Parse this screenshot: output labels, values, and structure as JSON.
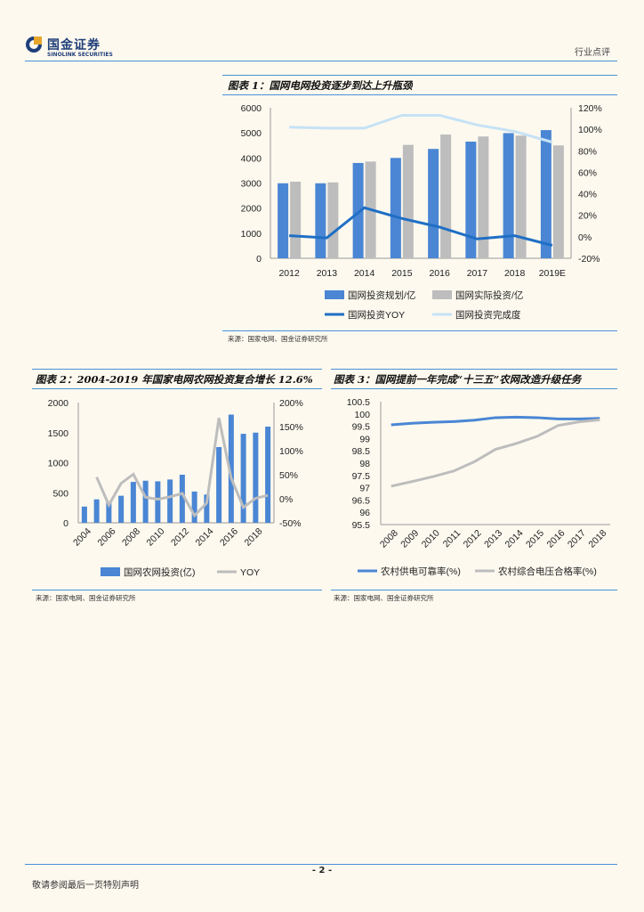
{
  "header": {
    "brand_cn": "国金证券",
    "brand_en": "SINOLINK SECURITIES",
    "category": "行业点评"
  },
  "fig1": {
    "title": "图表 1：国网电网投资逐步到达上升瓶颈",
    "source": "来源：国家电网、国金证券研究所",
    "chart_data": {
      "type": "bar",
      "categories": [
        "2012",
        "2013",
        "2014",
        "2015",
        "2016",
        "2017",
        "2018",
        "2019E"
      ],
      "series": [
        {
          "name": "国网投资规划/亿",
          "type": "bar",
          "color": "#4a86d4",
          "values": [
            2990,
            2990,
            3800,
            4000,
            4360,
            4650,
            4990,
            5110
          ]
        },
        {
          "name": "国网实际投资/亿",
          "type": "bar",
          "color": "#bdbdbd",
          "values": [
            3054,
            3025,
            3855,
            4521,
            4933,
            4855,
            4889,
            4500
          ]
        },
        {
          "name": "国网投资YOY",
          "type": "line",
          "axis": "right",
          "color": "#1f6fc5",
          "values": [
            1,
            -1,
            27,
            17,
            9,
            -2,
            1,
            -8
          ]
        },
        {
          "name": "国网投资完成度",
          "type": "line",
          "axis": "right",
          "color": "#c6e2f5",
          "values": [
            102,
            101,
            101,
            113,
            113,
            104,
            98,
            88
          ]
        }
      ],
      "y_left": {
        "min": 0,
        "max": 6000,
        "ticks": [
          "0",
          "1000",
          "2000",
          "3000",
          "4000",
          "5000",
          "6000"
        ]
      },
      "y_right": {
        "min": -20,
        "max": 120,
        "ticks": [
          "-20%",
          "0%",
          "20%",
          "40%",
          "60%",
          "80%",
          "100%",
          "120%"
        ]
      }
    }
  },
  "fig2": {
    "title": "图表 2：2004-2019 年国家电网农网投资复合增长 12.6%",
    "source": "来源：国家电网、国金证券研究所",
    "chart_data": {
      "type": "bar",
      "categories": [
        "2004",
        "2005",
        "2006",
        "2007",
        "2008",
        "2009",
        "2010",
        "2011",
        "2012",
        "2013",
        "2014",
        "2015",
        "2016",
        "2017",
        "2018",
        "2019"
      ],
      "x_tick_labels": [
        "2004",
        "2006",
        "2008",
        "2010",
        "2012",
        "2014",
        "2016",
        "2018"
      ],
      "series": [
        {
          "name": "国网农网投资(亿)",
          "type": "bar",
          "color": "#4a86d4",
          "values": [
            270,
            390,
            340,
            450,
            680,
            700,
            690,
            720,
            800,
            520,
            470,
            1260,
            1800,
            1480,
            1500,
            1600
          ]
        },
        {
          "name": "YOY",
          "type": "line",
          "axis": "right",
          "color": "#bdbdbd",
          "values": [
            null,
            45,
            -13,
            32,
            51,
            3,
            -1,
            4,
            11,
            -35,
            -9,
            168,
            43,
            -18,
            1,
            7
          ]
        }
      ],
      "y_left": {
        "min": 0,
        "max": 2000,
        "ticks": [
          "0",
          "500",
          "1000",
          "1500",
          "2000"
        ]
      },
      "y_right": {
        "min": -50,
        "max": 200,
        "ticks": [
          "-50%",
          "0%",
          "50%",
          "100%",
          "150%",
          "200%"
        ]
      }
    }
  },
  "fig3": {
    "title": "图表 3：国网提前一年完成“十三五”农网改造升级任务",
    "source": "来源：国家电网、国金证券研究所",
    "chart_data": {
      "type": "line",
      "categories": [
        "2008",
        "2009",
        "2010",
        "2011",
        "2012",
        "2013",
        "2014",
        "2015",
        "2016",
        "2017",
        "2018"
      ],
      "series": [
        {
          "name": "农村供电可靠率(%)",
          "color": "#4a86d4",
          "values": [
            99.56,
            99.62,
            99.66,
            99.69,
            99.75,
            99.85,
            99.87,
            99.85,
            99.8,
            99.8,
            99.82
          ]
        },
        {
          "name": "农村综合电压合格率(%)",
          "color": "#bdbdbd",
          "values": [
            97.06,
            97.25,
            97.45,
            97.68,
            98.06,
            98.56,
            98.8,
            99.09,
            99.53,
            99.68,
            99.76
          ]
        }
      ],
      "y": {
        "min": 95.5,
        "max": 100.5,
        "ticks": [
          "95.5",
          "96",
          "96.5",
          "97",
          "97.5",
          "98",
          "98.5",
          "99",
          "99.5",
          "100",
          "100.5"
        ]
      }
    }
  },
  "footer": {
    "page_number": "- 2 -",
    "note": "敬请参阅最后一页特别声明"
  }
}
